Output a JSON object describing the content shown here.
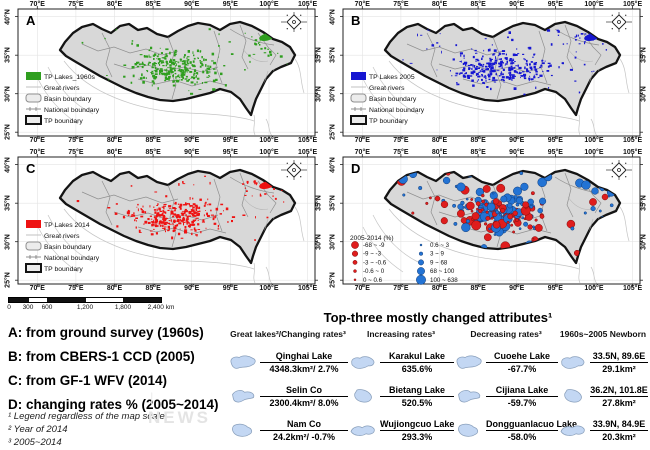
{
  "axes": {
    "lon_ticks": [
      "70°E",
      "75°E",
      "80°E",
      "85°E",
      "90°E",
      "95°E",
      "100°E",
      "105°E"
    ],
    "lat_ticks_left": [
      "40°N",
      "35°N",
      "30°N",
      "25°N"
    ],
    "lat_ticks_right": [
      "35°N",
      "30°N"
    ]
  },
  "map_legend_common": [
    {
      "symbol": "great-rivers-line",
      "label": "Great rivers"
    },
    {
      "symbol": "basin-boundary-outline",
      "label": "Basin boundary"
    },
    {
      "symbol": "national-boundary-line",
      "label": "National boundary"
    },
    {
      "symbol": "tp-boundary-outline",
      "label": "TP boundary"
    }
  ],
  "panels": [
    {
      "letter": "A",
      "type": "lakes",
      "lake_label": "TP Lakes_1960s",
      "lake_color": "#2f9e1f",
      "seed": 7
    },
    {
      "letter": "B",
      "type": "lakes",
      "lake_label": "TP Lakes 2005",
      "lake_color": "#1616d1",
      "seed": 13
    },
    {
      "letter": "C",
      "type": "lakes",
      "lake_label": "TP Lakes 2014",
      "lake_color": "#ee1212",
      "seed": 29
    },
    {
      "letter": "D",
      "type": "rates",
      "legend_title": "2005-2014 (%)",
      "negative_color": "#df1d1d",
      "positive_color": "#2373d4",
      "seed": 53,
      "negative_classes": [
        "-68 ~ -9",
        "-9 ~ -3",
        "-3 ~ -0.6",
        "-0.6 ~ 0",
        "0 ~ 0.6"
      ],
      "positive_classes": [
        "0.6 ~ 3",
        "3 ~ 9",
        "9 ~ 68",
        "68 ~ 100",
        "100 ~ 638"
      ]
    }
  ],
  "scalebar": {
    "tick_labels": [
      "0",
      "300",
      "600",
      "1,200",
      "1,800",
      "2,400"
    ],
    "unit": "km"
  },
  "captions": [
    "A: from ground survey (1960s)",
    "B: from CBERS-1 CCD (2005)",
    "C: from GF-1 WFV (2014)",
    "D: changing rates % (2005~2014)"
  ],
  "footnotes": [
    "¹ Legend regardless of the map scale",
    "² Year of 2014",
    "³ 2005~2014"
  ],
  "watermark": "NEWS",
  "table": {
    "title": "Top-three mostly changed attributes¹",
    "columns": [
      {
        "header": "Great lakes²/Changing rates³",
        "rows": [
          {
            "name": "Qinghai Lake",
            "value": "4348.3km²/ 2.7%"
          },
          {
            "name": "Selin Co",
            "value": "2300.4km²/ 8.0%"
          },
          {
            "name": "Nam Co",
            "value": "24.2km²/ -0.7%"
          }
        ]
      },
      {
        "header": "Increasing rates³",
        "rows": [
          {
            "name": "Karakul Lake",
            "value": "635.6%"
          },
          {
            "name": "Bietang Lake",
            "value": "520.5%"
          },
          {
            "name": "Wujiongcuo Lake",
            "value": "293.3%"
          }
        ]
      },
      {
        "header": "Decreasing rates³",
        "rows": [
          {
            "name": "Cuoehe Lake",
            "value": "-67.7%"
          },
          {
            "name": "Cijiana Lake",
            "value": "-59.7%"
          },
          {
            "name": "Dongguanlacuo Lake",
            "value": "-58.0%"
          }
        ]
      },
      {
        "header": "1960s~2005 Newborn",
        "rows": [
          {
            "name": "33.5N, 89.6E",
            "value": "29.1km²"
          },
          {
            "name": "36.2N, 101.8E",
            "value": "27.8km²"
          },
          {
            "name": "33.9N, 84.9E",
            "value": "20.3km²"
          }
        ]
      }
    ]
  },
  "colors": {
    "map_fill": "#d8d8d8",
    "tp_boundary": "#141414",
    "basin_boundary": "#8f8f8f",
    "great_rivers": "#bfbfbf",
    "lake_icon_fill": "#c3d7f3",
    "lake_icon_stroke": "#8aa0bc"
  }
}
